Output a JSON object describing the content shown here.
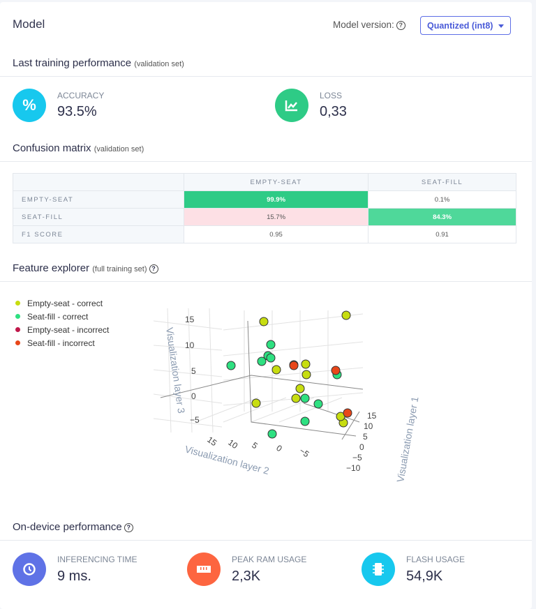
{
  "header": {
    "title": "Model",
    "version_label": "Model version:",
    "version_selected": "Quantized (int8)"
  },
  "training": {
    "title": "Last training performance",
    "subtitle": "(validation set)",
    "accuracy": {
      "label": "ACCURACY",
      "value": "93.5%",
      "icon": "percent-icon",
      "color": "#17c8ee"
    },
    "loss": {
      "label": "LOSS",
      "value": "0,33",
      "icon": "chart-line-icon",
      "color": "#2ecb86"
    }
  },
  "confusion": {
    "title": "Confusion matrix",
    "subtitle": "(validation set)",
    "columns": [
      "EMPTY-SEAT",
      "SEAT-FILL"
    ],
    "rows": [
      {
        "label": "EMPTY-SEAT",
        "cells": [
          "99.9%",
          "0.1%"
        ]
      },
      {
        "label": "SEAT-FILL",
        "cells": [
          "15.7%",
          "84.3%"
        ]
      },
      {
        "label": "F1 SCORE",
        "cells": [
          "0.95",
          "0.91"
        ]
      }
    ]
  },
  "explorer": {
    "title": "Feature explorer",
    "subtitle": "(full training set)",
    "legend": [
      {
        "label": "Empty-seat - correct",
        "color": "#c7dd10"
      },
      {
        "label": "Seat-fill - correct",
        "color": "#2ee081"
      },
      {
        "label": "Empty-seat - incorrect",
        "color": "#c0184a"
      },
      {
        "label": "Seat-fill - incorrect",
        "color": "#e8471a"
      }
    ],
    "axes": {
      "x_title": "Visualization layer 1",
      "y_title": "Visualization layer 2",
      "z_title": "Visualization layer 3",
      "x_ticks": [
        "15",
        "10",
        "5",
        "0",
        "−5",
        "−10"
      ],
      "y_ticks": [
        "15",
        "10",
        "5",
        "0",
        "−5"
      ],
      "z_ticks": [
        "15",
        "10",
        "5",
        "0",
        "−5"
      ]
    }
  },
  "ondevice": {
    "title": "On-device performance",
    "inferencing": {
      "label": "INFERENCING TIME",
      "value": "9 ms.",
      "icon": "clock-icon",
      "color": "#5f72e6"
    },
    "ram": {
      "label": "PEAK RAM USAGE",
      "value": "2,3K",
      "icon": "memory-icon",
      "color": "#fd6540"
    },
    "flash": {
      "label": "FLASH USAGE",
      "value": "54,9K",
      "icon": "chip-icon",
      "color": "#17c8ee"
    }
  }
}
